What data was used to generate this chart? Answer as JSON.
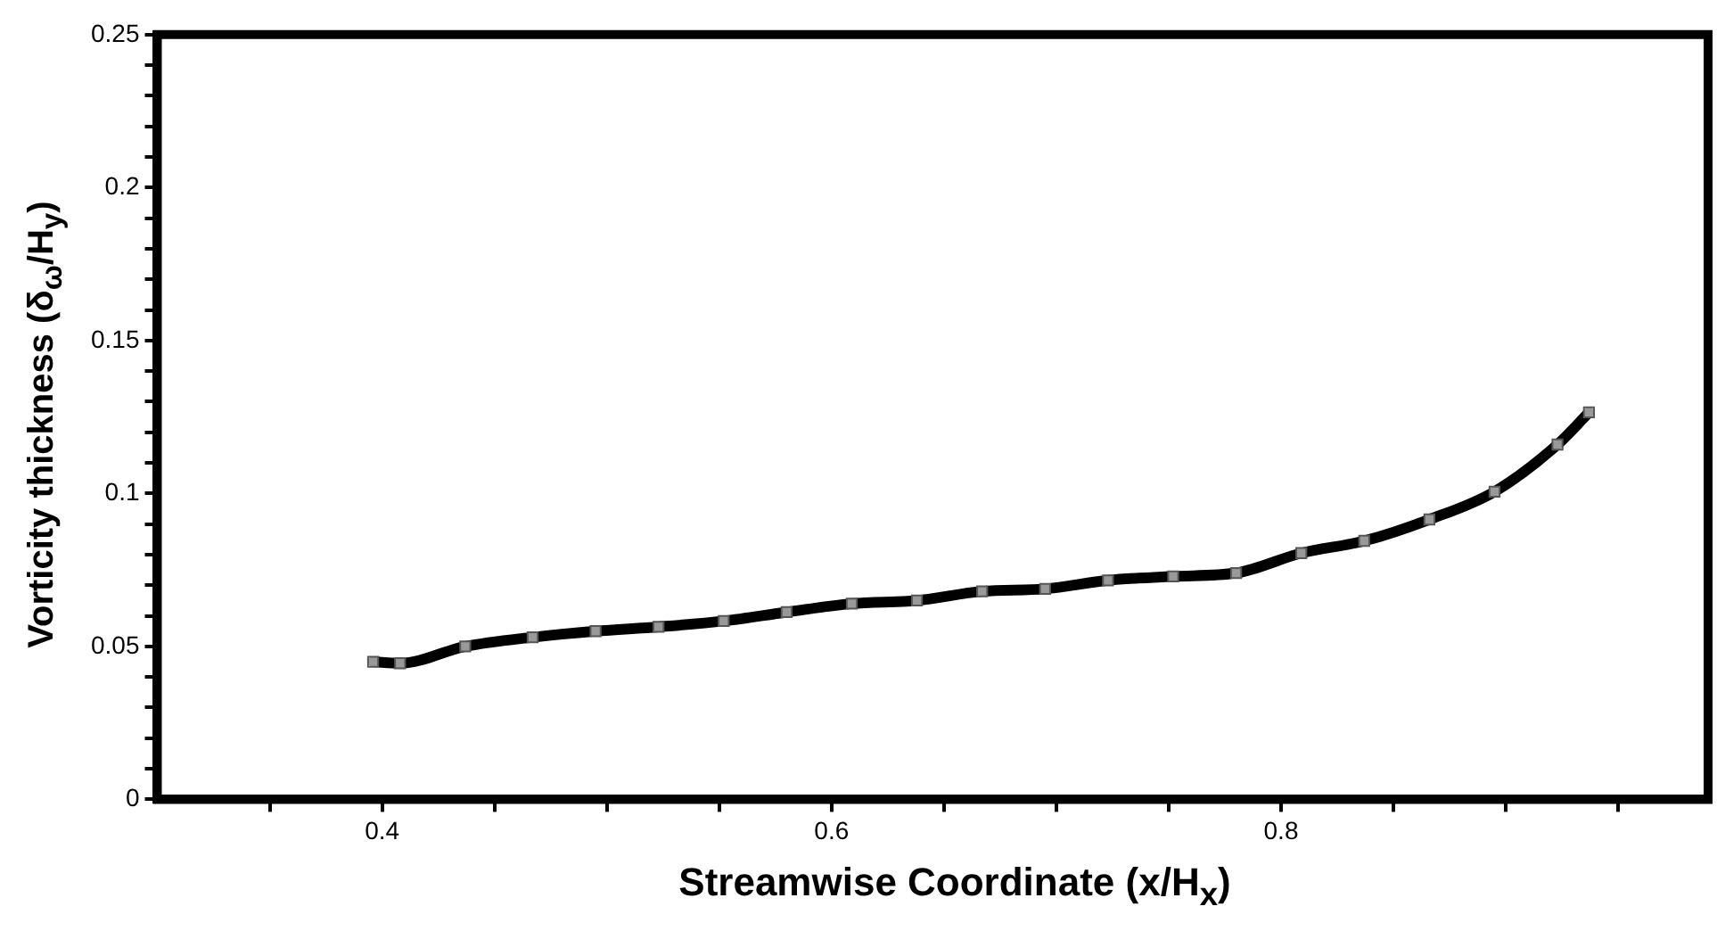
{
  "chart_data": {
    "type": "line",
    "xlabel": "Streamwise Coordinate (x/H$_{x}$)",
    "ylabel": "Vorticity thickness (δ$_{ω}$/H$_{y}$)",
    "xlim": [
      0.3,
      0.99
    ],
    "xticks": [
      {
        "value": 0.35,
        "label": null
      },
      0.4,
      {
        "value": 0.45,
        "label": null
      },
      {
        "value": 0.5,
        "label": null
      },
      {
        "value": 0.55,
        "label": null
      },
      0.6,
      {
        "value": 0.65,
        "label": null
      },
      {
        "value": 0.7,
        "label": null
      },
      {
        "value": 0.75,
        "label": null
      },
      0.8,
      {
        "value": 0.85,
        "label": null
      },
      {
        "value": 0.9,
        "label": null
      },
      {
        "value": 0.95,
        "label": null
      }
    ],
    "ylim": [
      0,
      0.25
    ],
    "yticks": [
      0,
      {
        "value": 0.01,
        "label": null
      },
      {
        "value": 0.02,
        "label": null
      },
      {
        "value": 0.03,
        "label": null
      },
      {
        "value": 0.04,
        "label": null
      },
      0.05,
      {
        "value": 0.06,
        "label": null
      },
      {
        "value": 0.07,
        "label": null
      },
      {
        "value": 0.08,
        "label": null
      },
      {
        "value": 0.09,
        "label": null
      },
      0.1,
      {
        "value": 0.11,
        "label": null
      },
      {
        "value": 0.12,
        "label": null
      },
      {
        "value": 0.13,
        "label": null
      },
      {
        "value": 0.14,
        "label": null
      },
      0.15,
      {
        "value": 0.16,
        "label": null
      },
      {
        "value": 0.17,
        "label": null
      },
      {
        "value": 0.18,
        "label": null
      },
      {
        "value": 0.19,
        "label": null
      },
      0.2,
      {
        "value": 0.21,
        "label": null
      },
      {
        "value": 0.22,
        "label": null
      },
      {
        "value": 0.23,
        "label": null
      },
      {
        "value": 0.24,
        "label": null
      },
      0.25
    ],
    "grid": false,
    "legend": false,
    "marker": "square",
    "line_style": "solid",
    "series": [
      {
        "color": "#000000",
        "x": [
          0.396,
          0.408,
          0.437,
          0.467,
          0.495,
          0.523,
          0.552,
          0.58,
          0.609,
          0.638,
          0.667,
          0.695,
          0.723,
          0.752,
          0.78,
          0.809,
          0.837,
          0.866,
          0.895,
          0.923,
          0.937
        ],
        "values": [
          0.045,
          0.0445,
          0.05,
          0.053,
          0.055,
          0.0564,
          0.0583,
          0.0612,
          0.064,
          0.065,
          0.068,
          0.0688,
          0.0716,
          0.0729,
          0.074,
          0.0805,
          0.0845,
          0.0915,
          0.1006,
          0.116,
          0.1265
        ]
      }
    ]
  }
}
